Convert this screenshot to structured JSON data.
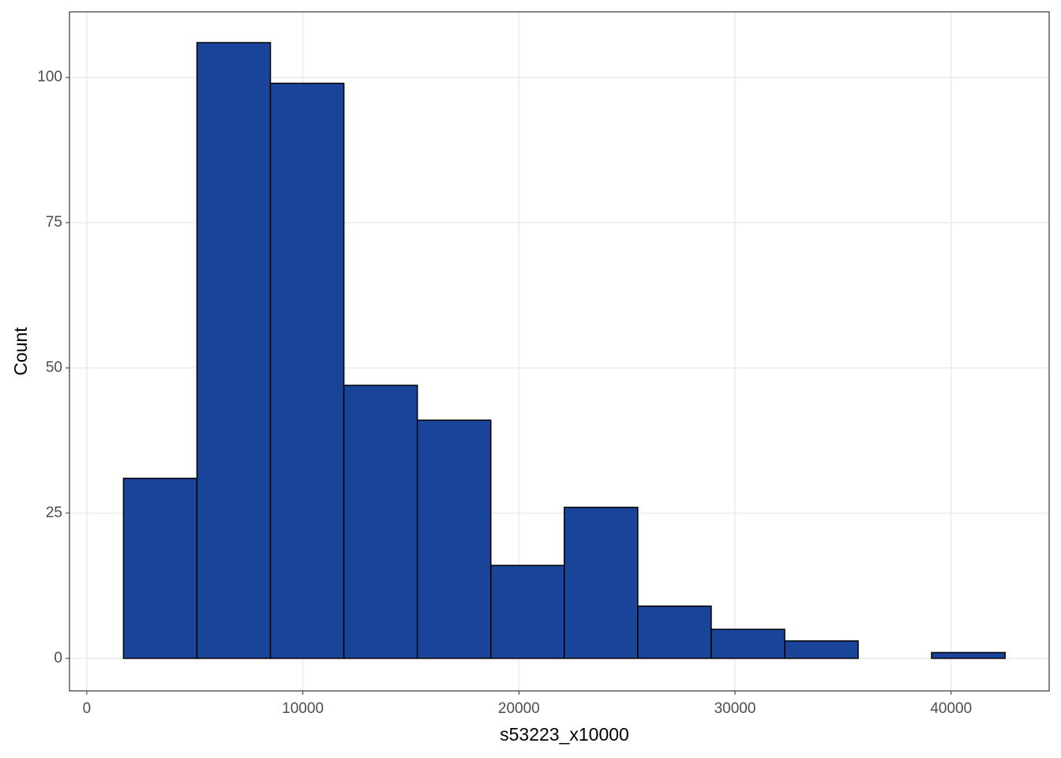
{
  "chart_data": {
    "type": "histogram",
    "x_label": "s53223_x10000",
    "y_label": "Count",
    "bins": [
      1700,
      5100,
      8500,
      11900,
      15300,
      18700,
      22100,
      25500,
      28900,
      32300,
      35700,
      39100,
      42500
    ],
    "values": [
      31,
      106,
      99,
      47,
      41,
      16,
      26,
      9,
      5,
      3,
      0,
      1
    ],
    "color": "#19449a",
    "edgecolor": "#000000",
    "xlim": [
      -800,
      44540
    ],
    "ylim": [
      -5.6,
      111.3
    ],
    "xticks": [
      0,
      10000,
      20000,
      30000,
      40000
    ],
    "yticks": [
      0,
      25,
      50,
      75,
      100
    ],
    "grid": true
  }
}
